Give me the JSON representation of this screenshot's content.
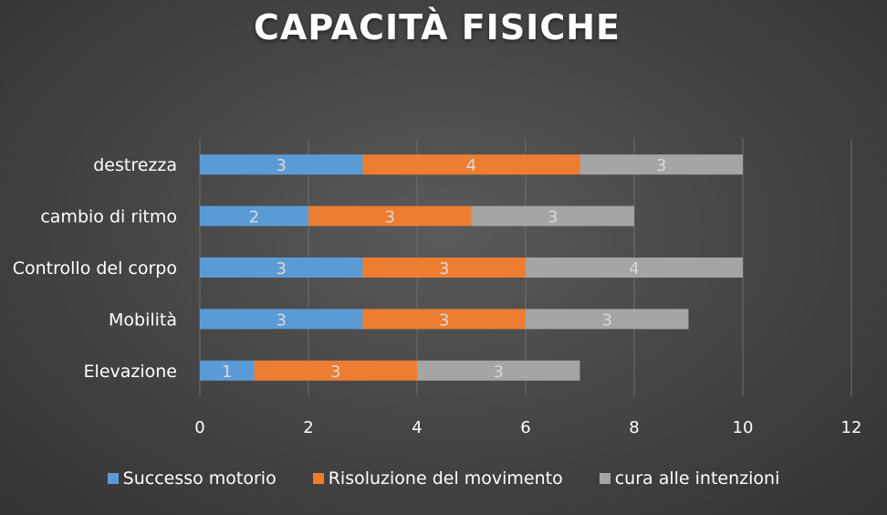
{
  "chart_data": {
    "type": "bar",
    "orientation": "horizontal",
    "stacked": true,
    "title": "CAPACITÀ FISICHE",
    "categories": [
      "destrezza",
      "cambio di ritmo",
      "Controllo del corpo",
      "Mobilità",
      "Elevazione"
    ],
    "series": [
      {
        "name": "Successo motorio",
        "color": "#5b9bd5",
        "values": [
          3,
          2,
          3,
          3,
          1
        ]
      },
      {
        "name": "Risoluzione del movimento",
        "color": "#ed7d31",
        "values": [
          4,
          3,
          3,
          3,
          3
        ]
      },
      {
        "name": "cura alle intenzioni",
        "color": "#a5a5a5",
        "values": [
          3,
          3,
          4,
          3,
          3
        ]
      }
    ],
    "xlim": [
      0,
      12
    ],
    "xticks": [
      "0",
      "2",
      "4",
      "6",
      "8",
      "10",
      "12"
    ],
    "grid": true,
    "data_labels": true,
    "legend_position": "bottom"
  }
}
